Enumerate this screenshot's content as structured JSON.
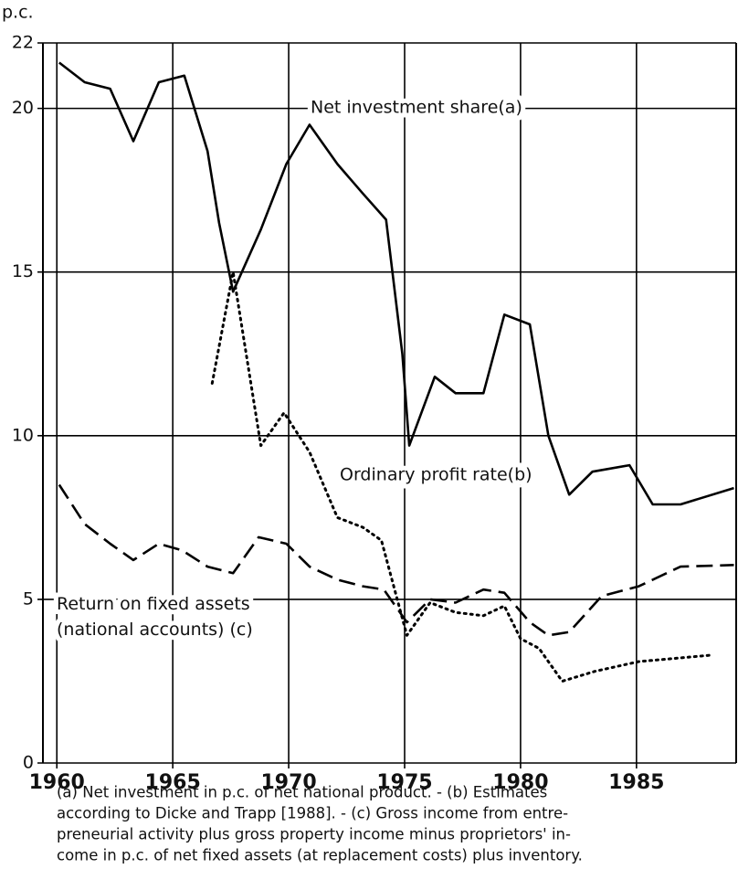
{
  "chart_data": {
    "type": "line",
    "y_label": "p.c.",
    "xlim": [
      1959.4,
      1989.3
    ],
    "xticks": [
      1960,
      1965,
      1970,
      1975,
      1980,
      1985
    ],
    "ylim": [
      0,
      22
    ],
    "yticks": [
      0,
      5,
      10,
      15,
      20,
      22
    ],
    "grid": true,
    "series": [
      {
        "name": "Net investment share(a)",
        "color": "#000000",
        "dash": "solid",
        "x": [
          1960.1,
          1961.2,
          1962.3,
          1963.3,
          1964.4,
          1965.5,
          1966.5,
          1967.0,
          1967.6,
          1968.8,
          1969.9,
          1970.9,
          1972.1,
          1973.2,
          1974.2,
          1974.9,
          1975.2,
          1976.3,
          1977.2,
          1978.4,
          1979.3,
          1980.4,
          1981.2,
          1982.1,
          1983.1,
          1984.7,
          1985.7,
          1986.9,
          1989.2
        ],
        "values": [
          21.4,
          20.8,
          20.6,
          19.0,
          20.8,
          21.0,
          18.7,
          16.5,
          14.4,
          16.3,
          18.3,
          19.5,
          18.3,
          17.4,
          16.6,
          12.5,
          9.7,
          11.8,
          11.3,
          11.3,
          13.7,
          13.4,
          10.0,
          8.2,
          8.9,
          9.1,
          7.9,
          7.9,
          8.4
        ]
      },
      {
        "name": "Ordinary profit rate(b)",
        "color": "#000000",
        "dash": "dotted",
        "x": [
          1966.7,
          1967.6,
          1968.8,
          1969.8,
          1970.9,
          1972.1,
          1973.2,
          1974.0,
          1975.1,
          1976.1,
          1977.2,
          1978.4,
          1979.3,
          1980.0,
          1980.8,
          1981.8,
          1983.2,
          1985.1,
          1988.3
        ],
        "values": [
          11.6,
          15.0,
          9.7,
          10.7,
          9.5,
          7.5,
          7.2,
          6.8,
          3.9,
          4.9,
          4.6,
          4.5,
          4.8,
          3.8,
          3.5,
          2.5,
          2.8,
          3.1,
          3.3
        ]
      },
      {
        "name": "Return on fixed assets (national accounts) (c)",
        "color": "#000000",
        "dash": "dashed",
        "x": [
          1960.1,
          1961.2,
          1962.3,
          1963.3,
          1964.4,
          1965.4,
          1966.5,
          1967.6,
          1968.7,
          1969.9,
          1970.9,
          1972.1,
          1973.2,
          1974.1,
          1975.1,
          1976.1,
          1977.2,
          1978.4,
          1979.3,
          1980.4,
          1981.2,
          1982.1,
          1983.5,
          1985.1,
          1986.9,
          1989.2
        ],
        "values": [
          8.5,
          7.3,
          6.7,
          6.2,
          6.7,
          6.5,
          6.0,
          5.8,
          6.9,
          6.7,
          6.0,
          5.6,
          5.4,
          5.3,
          4.3,
          5.0,
          4.9,
          5.3,
          5.2,
          4.3,
          3.9,
          4.0,
          5.1,
          5.4,
          6.0,
          6.05
        ]
      }
    ],
    "footnote": [
      "(a) Net investment in p.c. of net national product. - (b) Estimates",
      "according to Dicke and Trapp [1988]. - (c) Gross income from entre-",
      "preneurial activity plus gross property income minus proprietors' in-",
      "come in p.c. of net fixed assets (at replacement costs) plus inventory."
    ]
  }
}
